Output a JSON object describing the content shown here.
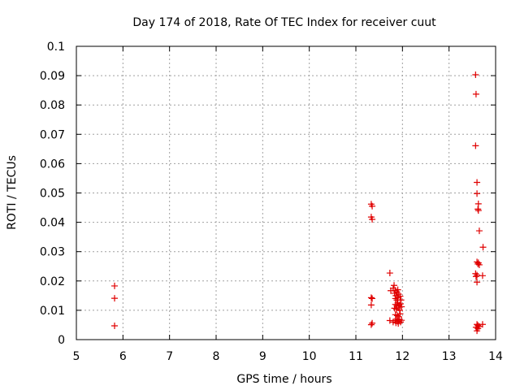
{
  "chart_data": {
    "type": "scatter",
    "title": "Day 174 of 2018, Rate Of TEC Index for receiver cuut",
    "xlabel": "GPS time / hours",
    "ylabel": "ROTI / TECUs",
    "xlim": [
      5,
      14
    ],
    "ylim": [
      0,
      0.1
    ],
    "xticks": [
      "5",
      "6",
      "7",
      "8",
      "9",
      "10",
      "11",
      "12",
      "13",
      "14"
    ],
    "yticks": [
      "0",
      "0.01",
      "0.02",
      "0.03",
      "0.04",
      "0.05",
      "0.06",
      "0.07",
      "0.08",
      "0.09",
      "0.1"
    ],
    "grid": true,
    "marker": "+",
    "color": "#e00000",
    "series": [
      {
        "points": [
          [
            5.82,
            0.0183
          ],
          [
            5.82,
            0.0141
          ],
          [
            5.82,
            0.0047
          ],
          [
            11.33,
            0.0462
          ],
          [
            11.35,
            0.0455
          ],
          [
            11.33,
            0.0418
          ],
          [
            11.35,
            0.041
          ],
          [
            11.33,
            0.0143
          ],
          [
            11.35,
            0.014
          ],
          [
            11.33,
            0.0118
          ],
          [
            11.35,
            0.0056
          ],
          [
            11.33,
            0.0051
          ],
          [
            11.73,
            0.0227
          ],
          [
            11.75,
            0.0167
          ],
          [
            11.8,
            0.0175
          ],
          [
            11.82,
            0.0185
          ],
          [
            11.85,
            0.0168
          ],
          [
            11.83,
            0.0158
          ],
          [
            11.86,
            0.015
          ],
          [
            11.88,
            0.0162
          ],
          [
            11.9,
            0.017
          ],
          [
            11.92,
            0.0155
          ],
          [
            11.85,
            0.014
          ],
          [
            11.88,
            0.0135
          ],
          [
            11.9,
            0.0143
          ],
          [
            11.95,
            0.0148
          ],
          [
            11.97,
            0.0135
          ],
          [
            11.85,
            0.012
          ],
          [
            11.88,
            0.0115
          ],
          [
            11.9,
            0.0125
          ],
          [
            11.93,
            0.0118
          ],
          [
            11.96,
            0.0122
          ],
          [
            11.83,
            0.0107
          ],
          [
            11.87,
            0.0103
          ],
          [
            11.91,
            0.0108
          ],
          [
            11.94,
            0.01
          ],
          [
            11.98,
            0.0112
          ],
          [
            11.85,
            0.0085
          ],
          [
            11.89,
            0.0082
          ],
          [
            11.92,
            0.0078
          ],
          [
            11.95,
            0.0088
          ],
          [
            11.73,
            0.0065
          ],
          [
            11.8,
            0.006
          ],
          [
            11.85,
            0.0065
          ],
          [
            11.88,
            0.007
          ],
          [
            11.9,
            0.0062
          ],
          [
            11.93,
            0.0068
          ],
          [
            11.96,
            0.006
          ],
          [
            11.98,
            0.0066
          ],
          [
            11.86,
            0.0057
          ],
          [
            11.91,
            0.0055
          ],
          [
            13.57,
            0.0903
          ],
          [
            13.58,
            0.0837
          ],
          [
            13.57,
            0.0661
          ],
          [
            13.6,
            0.0536
          ],
          [
            13.6,
            0.0498
          ],
          [
            13.63,
            0.0463
          ],
          [
            13.62,
            0.0445
          ],
          [
            13.63,
            0.044
          ],
          [
            13.65,
            0.0371
          ],
          [
            13.73,
            0.0315
          ],
          [
            13.6,
            0.0265
          ],
          [
            13.62,
            0.0258
          ],
          [
            13.63,
            0.0262
          ],
          [
            13.65,
            0.0255
          ],
          [
            13.57,
            0.0225
          ],
          [
            13.6,
            0.022
          ],
          [
            13.58,
            0.0215
          ],
          [
            13.72,
            0.0218
          ],
          [
            13.6,
            0.0196
          ],
          [
            13.6,
            0.0052
          ],
          [
            13.62,
            0.0048
          ],
          [
            13.65,
            0.0045
          ],
          [
            13.58,
            0.0042
          ],
          [
            13.62,
            0.0038
          ],
          [
            13.6,
            0.003
          ],
          [
            13.72,
            0.0052
          ]
        ]
      }
    ]
  }
}
